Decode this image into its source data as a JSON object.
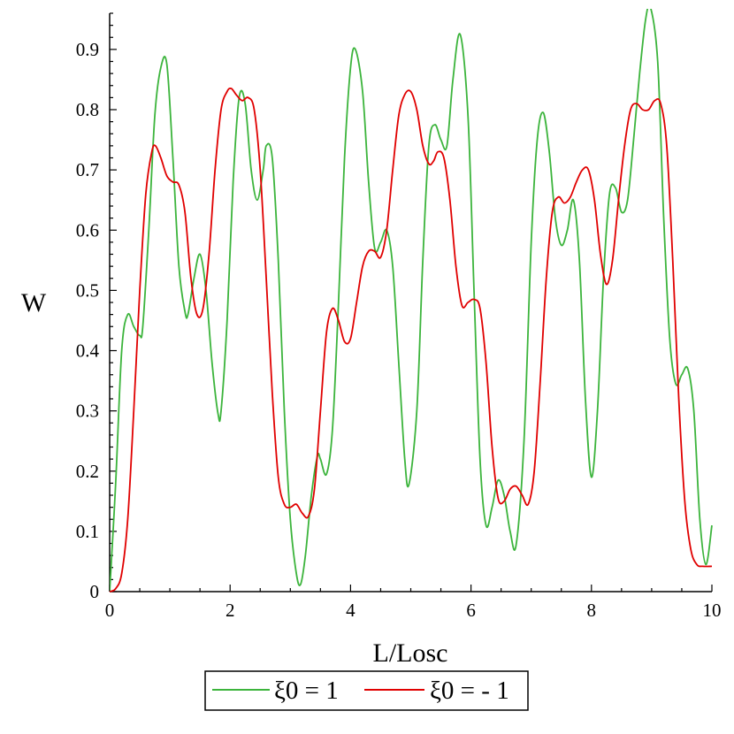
{
  "chart_data": {
    "type": "line",
    "title": "",
    "xlabel": "L/Losc",
    "ylabel": "W",
    "xlim": [
      0,
      10
    ],
    "ylim": [
      0,
      0.96
    ],
    "x_ticks": [
      0,
      2,
      4,
      6,
      8,
      10
    ],
    "y_ticks": [
      0,
      0.1,
      0.2,
      0.3,
      0.4,
      0.5,
      0.6,
      0.7,
      0.8,
      0.9
    ],
    "x_tick_labels": [
      "0",
      "2",
      "4",
      "6",
      "8",
      "10"
    ],
    "y_tick_labels": [
      "0",
      "0.1",
      "0.2",
      "0.3",
      "0.4",
      "0.5",
      "0.6",
      "0.7",
      "0.8",
      "0.9"
    ],
    "grid": false,
    "legend_position": "bottom",
    "series": [
      {
        "name": "ξ0 = 1",
        "color": "#3cb43c",
        "x": [
          0,
          0.1,
          0.2,
          0.3,
          0.4,
          0.5,
          0.55,
          0.65,
          0.75,
          0.85,
          0.95,
          1.05,
          1.15,
          1.25,
          1.3,
          1.4,
          1.5,
          1.6,
          1.7,
          1.8,
          1.85,
          1.95,
          2.05,
          2.15,
          2.25,
          2.35,
          2.45,
          2.55,
          2.6,
          2.7,
          2.8,
          2.9,
          3.0,
          3.1,
          3.17,
          3.25,
          3.35,
          3.45,
          3.5,
          3.6,
          3.7,
          3.8,
          3.9,
          4.0,
          4.08,
          4.2,
          4.3,
          4.4,
          4.5,
          4.6,
          4.7,
          4.8,
          4.9,
          4.97,
          5.1,
          5.2,
          5.3,
          5.4,
          5.5,
          5.6,
          5.7,
          5.82,
          5.95,
          6.05,
          6.15,
          6.25,
          6.35,
          6.45,
          6.55,
          6.65,
          6.75,
          6.88,
          7.0,
          7.1,
          7.2,
          7.3,
          7.4,
          7.5,
          7.6,
          7.7,
          7.8,
          7.9,
          8.0,
          8.1,
          8.2,
          8.3,
          8.4,
          8.5,
          8.6,
          8.7,
          8.8,
          8.9,
          8.98,
          9.1,
          9.2,
          9.3,
          9.4,
          9.5,
          9.6,
          9.7,
          9.8,
          9.9,
          10.0
        ],
        "y": [
          0.0,
          0.18,
          0.4,
          0.46,
          0.44,
          0.425,
          0.44,
          0.6,
          0.79,
          0.87,
          0.875,
          0.72,
          0.54,
          0.465,
          0.46,
          0.52,
          0.56,
          0.5,
          0.38,
          0.295,
          0.3,
          0.45,
          0.68,
          0.82,
          0.81,
          0.7,
          0.65,
          0.7,
          0.74,
          0.72,
          0.55,
          0.3,
          0.12,
          0.03,
          0.012,
          0.06,
          0.16,
          0.225,
          0.22,
          0.195,
          0.27,
          0.48,
          0.72,
          0.87,
          0.9,
          0.83,
          0.68,
          0.57,
          0.58,
          0.6,
          0.54,
          0.38,
          0.22,
          0.178,
          0.3,
          0.55,
          0.74,
          0.775,
          0.75,
          0.74,
          0.85,
          0.925,
          0.79,
          0.5,
          0.22,
          0.11,
          0.14,
          0.185,
          0.16,
          0.1,
          0.078,
          0.25,
          0.58,
          0.75,
          0.795,
          0.73,
          0.62,
          0.575,
          0.6,
          0.65,
          0.55,
          0.32,
          0.19,
          0.3,
          0.52,
          0.66,
          0.67,
          0.63,
          0.65,
          0.75,
          0.86,
          0.95,
          0.97,
          0.88,
          0.62,
          0.42,
          0.345,
          0.36,
          0.37,
          0.3,
          0.12,
          0.045,
          0.11
        ]
      },
      {
        "name": "ξ0 = - 1",
        "color": "#e00000",
        "x": [
          0,
          0.1,
          0.2,
          0.3,
          0.4,
          0.5,
          0.6,
          0.7,
          0.76,
          0.85,
          0.95,
          1.05,
          1.15,
          1.25,
          1.35,
          1.45,
          1.55,
          1.65,
          1.75,
          1.85,
          1.95,
          2.02,
          2.1,
          2.2,
          2.3,
          2.4,
          2.5,
          2.6,
          2.7,
          2.8,
          2.9,
          3.0,
          3.1,
          3.2,
          3.3,
          3.4,
          3.5,
          3.6,
          3.7,
          3.8,
          3.9,
          4.0,
          4.1,
          4.2,
          4.3,
          4.4,
          4.5,
          4.6,
          4.7,
          4.8,
          4.9,
          5.0,
          5.1,
          5.2,
          5.3,
          5.38,
          5.45,
          5.55,
          5.65,
          5.75,
          5.85,
          5.95,
          6.05,
          6.15,
          6.25,
          6.35,
          6.45,
          6.55,
          6.65,
          6.75,
          6.85,
          6.95,
          7.05,
          7.15,
          7.25,
          7.35,
          7.45,
          7.55,
          7.65,
          7.75,
          7.85,
          7.95,
          8.05,
          8.15,
          8.25,
          8.35,
          8.45,
          8.55,
          8.65,
          8.75,
          8.85,
          8.95,
          9.05,
          9.15,
          9.25,
          9.35,
          9.45,
          9.55,
          9.65,
          9.75,
          9.85,
          10.0
        ],
        "y": [
          0.0,
          0.005,
          0.03,
          0.12,
          0.3,
          0.5,
          0.66,
          0.73,
          0.74,
          0.72,
          0.69,
          0.68,
          0.675,
          0.63,
          0.52,
          0.46,
          0.47,
          0.56,
          0.7,
          0.8,
          0.83,
          0.835,
          0.825,
          0.815,
          0.82,
          0.8,
          0.7,
          0.52,
          0.33,
          0.19,
          0.145,
          0.14,
          0.145,
          0.13,
          0.125,
          0.17,
          0.3,
          0.43,
          0.47,
          0.45,
          0.415,
          0.42,
          0.48,
          0.54,
          0.565,
          0.565,
          0.555,
          0.6,
          0.7,
          0.79,
          0.825,
          0.83,
          0.8,
          0.74,
          0.71,
          0.715,
          0.73,
          0.72,
          0.65,
          0.54,
          0.475,
          0.48,
          0.485,
          0.47,
          0.38,
          0.24,
          0.155,
          0.15,
          0.17,
          0.175,
          0.16,
          0.145,
          0.2,
          0.35,
          0.52,
          0.63,
          0.655,
          0.645,
          0.655,
          0.68,
          0.7,
          0.7,
          0.65,
          0.56,
          0.51,
          0.55,
          0.65,
          0.74,
          0.8,
          0.81,
          0.8,
          0.8,
          0.815,
          0.81,
          0.74,
          0.55,
          0.32,
          0.15,
          0.07,
          0.045,
          0.042,
          0.042
        ]
      }
    ]
  }
}
